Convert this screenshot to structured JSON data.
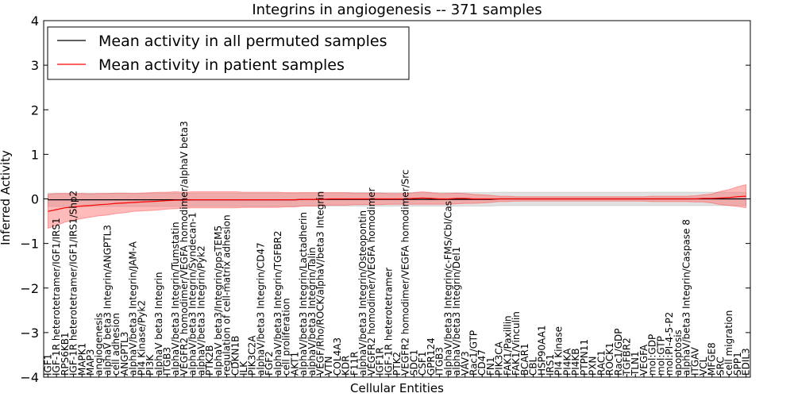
{
  "chart_data": {
    "type": "line",
    "title": "Integrins in angiogenesis -- 371 samples",
    "xlabel": "Cellular Entities",
    "ylabel": "Inferred Activity",
    "ylim": [
      -4,
      4
    ],
    "yticks": [
      -4,
      -3,
      -2,
      -1,
      0,
      1,
      2,
      3,
      4
    ],
    "grid": false,
    "legend_position": "top-left",
    "colors": {
      "permuted": "#000000",
      "patient": "#ff0000",
      "permuted_band": "#bfbfbf",
      "patient_band": "#ff6666"
    },
    "categories": [
      "IGF1",
      "IGF-1R heterotetramer/IGF1/IRS1",
      "RPS6KB1",
      "IGF-1R heterotetramer/IGF1/IRS1/Shp2",
      "MAPK1",
      "MAP3",
      "angiogenesis",
      "alphaV beta3 Integrin/ANGPTL3",
      "cell adhesion",
      "ANGPTL3",
      "alphaV/beta3 Integrin/JAM-A",
      "PI4 Kinase/Pyk2",
      "PI3K",
      "alphaV beta3 Integrin",
      "ITGB3",
      "alphaV/beta3 Integrin/Tumstatin",
      "VEGFR2 homodimer/VEGFA homodimer/alphaV beta3",
      "alphaV/beta3 Integrin/Syndecan-1",
      "alphaV/beta3 Integrin/Pyk2",
      "PTK2B",
      "alphaV beta3/Integrin/ppsTEM5",
      "regulation of cell-matrix adhesion",
      "CDKN1B",
      "ILK",
      "PIK3C2A",
      "alphaV/beta3 Integrin/CD47",
      "FGF2",
      "alphaV/beta3 Integrin/TGFBR2",
      "cell proliferation",
      "AKT1",
      "alphaV/beta3 Integrin/Lactadherin",
      "alphaV/beta3 Integrin/Talin",
      "VEGF/Rho/ROCK/alphaV/beta3 Integrin",
      "VTN",
      "COL4A3",
      "KDR",
      "F11R",
      "alphaV/beta3 Integrin/Osteopontin",
      "VEGFR2 homodimer/VEGFA homodimer",
      "IGF1R",
      "IGF-1R heterotetramer",
      "PTK2",
      "VEGFR2 homodimer/VEGFA homodimer/Src",
      "SDC1",
      "CSF1",
      "GPR124",
      "ITGB3",
      "alphaV/beta3 Integrin/c-FMS/Cbl/Cas",
      "alphaV/beta3 Integrin/Del1",
      "VAV3",
      "Rac1/GTP",
      "CD47",
      "FN1",
      "PIK3CA",
      "FAK1/Paxillin",
      "FAK1/Vinculin",
      "BCAR1",
      "CBL",
      "HSP90AA1",
      "IRS1",
      "PI4 Kinase",
      "PI4KA",
      "PI4KB",
      "PTPN11",
      "PXN",
      "RAC1",
      "ROCK1",
      "Rac1/GDP",
      "TGFBR2",
      "TLN1",
      "VEGFA",
      "mol:GDP",
      "mol:GTP",
      "mol:PI-4-5-P2",
      "apoptosis",
      "alphaV/beta3 Integrin/Caspase 8",
      "ITGAV",
      "VCL",
      "MFGE8",
      "SRC",
      "cell migration",
      "SPP1",
      "EDIL3"
    ],
    "series": [
      {
        "name": "Mean activity in all permuted samples",
        "color": "#000000",
        "values": [
          -0.02,
          -0.02,
          -0.02,
          -0.02,
          -0.02,
          -0.02,
          -0.02,
          -0.02,
          -0.02,
          -0.02,
          -0.02,
          -0.02,
          -0.02,
          -0.02,
          -0.02,
          -0.02,
          -0.02,
          -0.02,
          -0.02,
          -0.02,
          -0.02,
          -0.02,
          -0.02,
          -0.02,
          -0.02,
          -0.02,
          -0.02,
          -0.02,
          -0.02,
          -0.02,
          -0.01,
          -0.01,
          -0.01,
          -0.01,
          -0.01,
          -0.01,
          -0.01,
          -0.01,
          -0.01,
          -0.01,
          -0.01,
          -0.01,
          -0.01,
          -0.01,
          -0.01,
          -0.01,
          -0.01,
          -0.01,
          -0.01,
          -0.01,
          -0.01,
          -0.01,
          -0.01,
          0,
          0,
          0,
          0,
          0,
          0,
          0,
          0,
          0,
          0,
          0,
          0,
          0,
          0,
          0,
          0,
          0,
          0,
          0,
          0,
          0,
          0,
          0,
          0,
          0,
          0,
          0,
          0,
          0,
          0
        ],
        "band": [
          0.15,
          0.15,
          0.15,
          0.15,
          0.15,
          0.15,
          0.15,
          0.15,
          0.15,
          0.15,
          0.15,
          0.15,
          0.15,
          0.15,
          0.15,
          0.15,
          0.15,
          0.15,
          0.15,
          0.15,
          0.15,
          0.15,
          0.15,
          0.15,
          0.15,
          0.15,
          0.15,
          0.15,
          0.15,
          0.15,
          0.15,
          0.15,
          0.15,
          0.15,
          0.15,
          0.15,
          0.15,
          0.15,
          0.15,
          0.15,
          0.15,
          0.15,
          0.15,
          0.15,
          0.15,
          0.15,
          0.15,
          0.15,
          0.15,
          0.15,
          0.15,
          0.15,
          0.15,
          0.15,
          0.15,
          0.15,
          0.15,
          0.15,
          0.15,
          0.15,
          0.15,
          0.15,
          0.15,
          0.15,
          0.15,
          0.15,
          0.15,
          0.15,
          0.15,
          0.15,
          0.15,
          0.15,
          0.15,
          0.15,
          0.15,
          0.15,
          0.15,
          0.15,
          0.15,
          0.15,
          0.15,
          0.15,
          0.15
        ]
      },
      {
        "name": "Mean activity in patient samples",
        "color": "#ff0000",
        "values": [
          -0.28,
          -0.24,
          -0.2,
          -0.18,
          -0.16,
          -0.15,
          -0.13,
          -0.12,
          -0.1,
          -0.09,
          -0.08,
          -0.07,
          -0.06,
          -0.05,
          -0.04,
          -0.03,
          -0.03,
          -0.02,
          -0.02,
          -0.02,
          -0.02,
          -0.02,
          -0.02,
          -0.02,
          -0.02,
          -0.02,
          -0.02,
          -0.02,
          -0.02,
          -0.02,
          -0.01,
          -0.01,
          -0.01,
          0,
          0,
          0,
          0,
          0,
          0,
          0,
          0,
          0,
          0,
          0.01,
          0.02,
          0.01,
          0,
          0,
          0.01,
          0.01,
          0,
          0,
          0,
          0,
          0,
          0,
          0,
          0,
          0,
          0,
          0,
          0,
          0,
          0,
          0,
          0,
          0,
          0,
          0,
          0,
          0,
          0,
          0,
          0,
          0,
          0,
          0,
          0.01,
          0.01,
          0.02,
          0.03,
          0.05,
          0.06
        ],
        "band": [
          0.38,
          0.36,
          0.32,
          0.3,
          0.28,
          0.26,
          0.25,
          0.24,
          0.23,
          0.22,
          0.2,
          0.2,
          0.2,
          0.2,
          0.19,
          0.19,
          0.18,
          0.18,
          0.18,
          0.18,
          0.18,
          0.18,
          0.18,
          0.17,
          0.17,
          0.17,
          0.17,
          0.17,
          0.16,
          0.16,
          0.15,
          0.15,
          0.15,
          0.14,
          0.14,
          0.14,
          0.13,
          0.13,
          0.13,
          0.13,
          0.12,
          0.12,
          0.12,
          0.13,
          0.14,
          0.13,
          0.12,
          0.12,
          0.12,
          0.11,
          0.1,
          0.09,
          0.08,
          0.06,
          0.06,
          0.05,
          0.05,
          0.05,
          0.05,
          0.05,
          0.05,
          0.05,
          0.05,
          0.05,
          0.05,
          0.05,
          0.05,
          0.05,
          0.05,
          0.05,
          0.05,
          0.06,
          0.06,
          0.06,
          0.06,
          0.06,
          0.07,
          0.08,
          0.1,
          0.15,
          0.18,
          0.22,
          0.26
        ]
      }
    ]
  }
}
